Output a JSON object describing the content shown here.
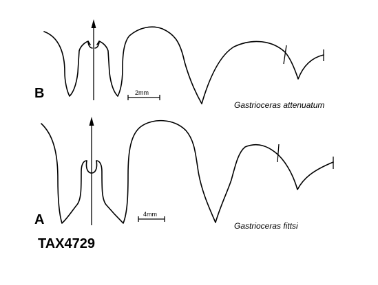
{
  "panels": {
    "b": {
      "letter": "B",
      "species": "Gastrioceras attenuatum",
      "scale_label": "2mm"
    },
    "a": {
      "letter": "A",
      "species": "Gastrioceras fittsi",
      "scale_label": "4mm"
    }
  },
  "catalog_number": "TAX4729"
}
